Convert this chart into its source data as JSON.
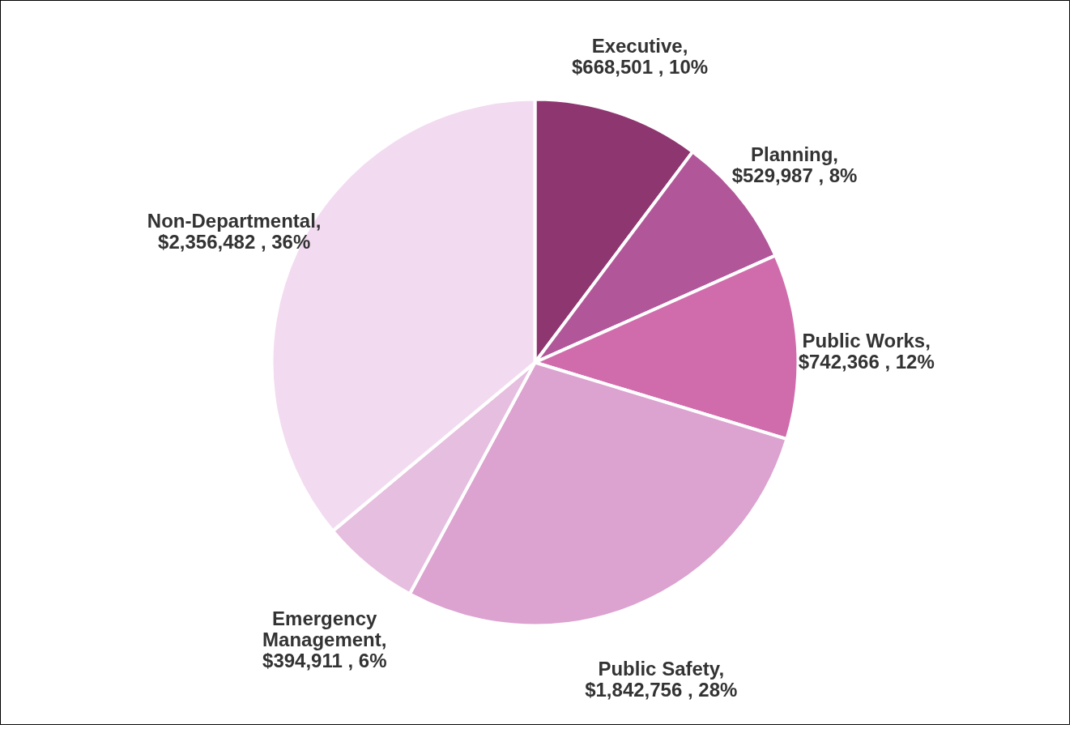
{
  "chart_data": {
    "type": "pie",
    "categories": [
      "Executive",
      "Planning",
      "Public Works",
      "Public Safety",
      "Emergency Management",
      "Non-Departmental"
    ],
    "values": [
      668501,
      529987,
      742366,
      1842756,
      394911,
      2356482
    ],
    "value_labels": [
      ", $668,501 , 10%",
      ", $529,987 , 8%",
      ", $742,366 , 12%",
      ", $1,842,756 , 28%",
      ", $394,911 , 6%",
      ", $2,356,482 , 36%"
    ],
    "colors": [
      "#8e3670",
      "#b2569a",
      "#d06cac",
      "#dca2d0",
      "#e6bedf",
      "#f2dbf0"
    ]
  }
}
